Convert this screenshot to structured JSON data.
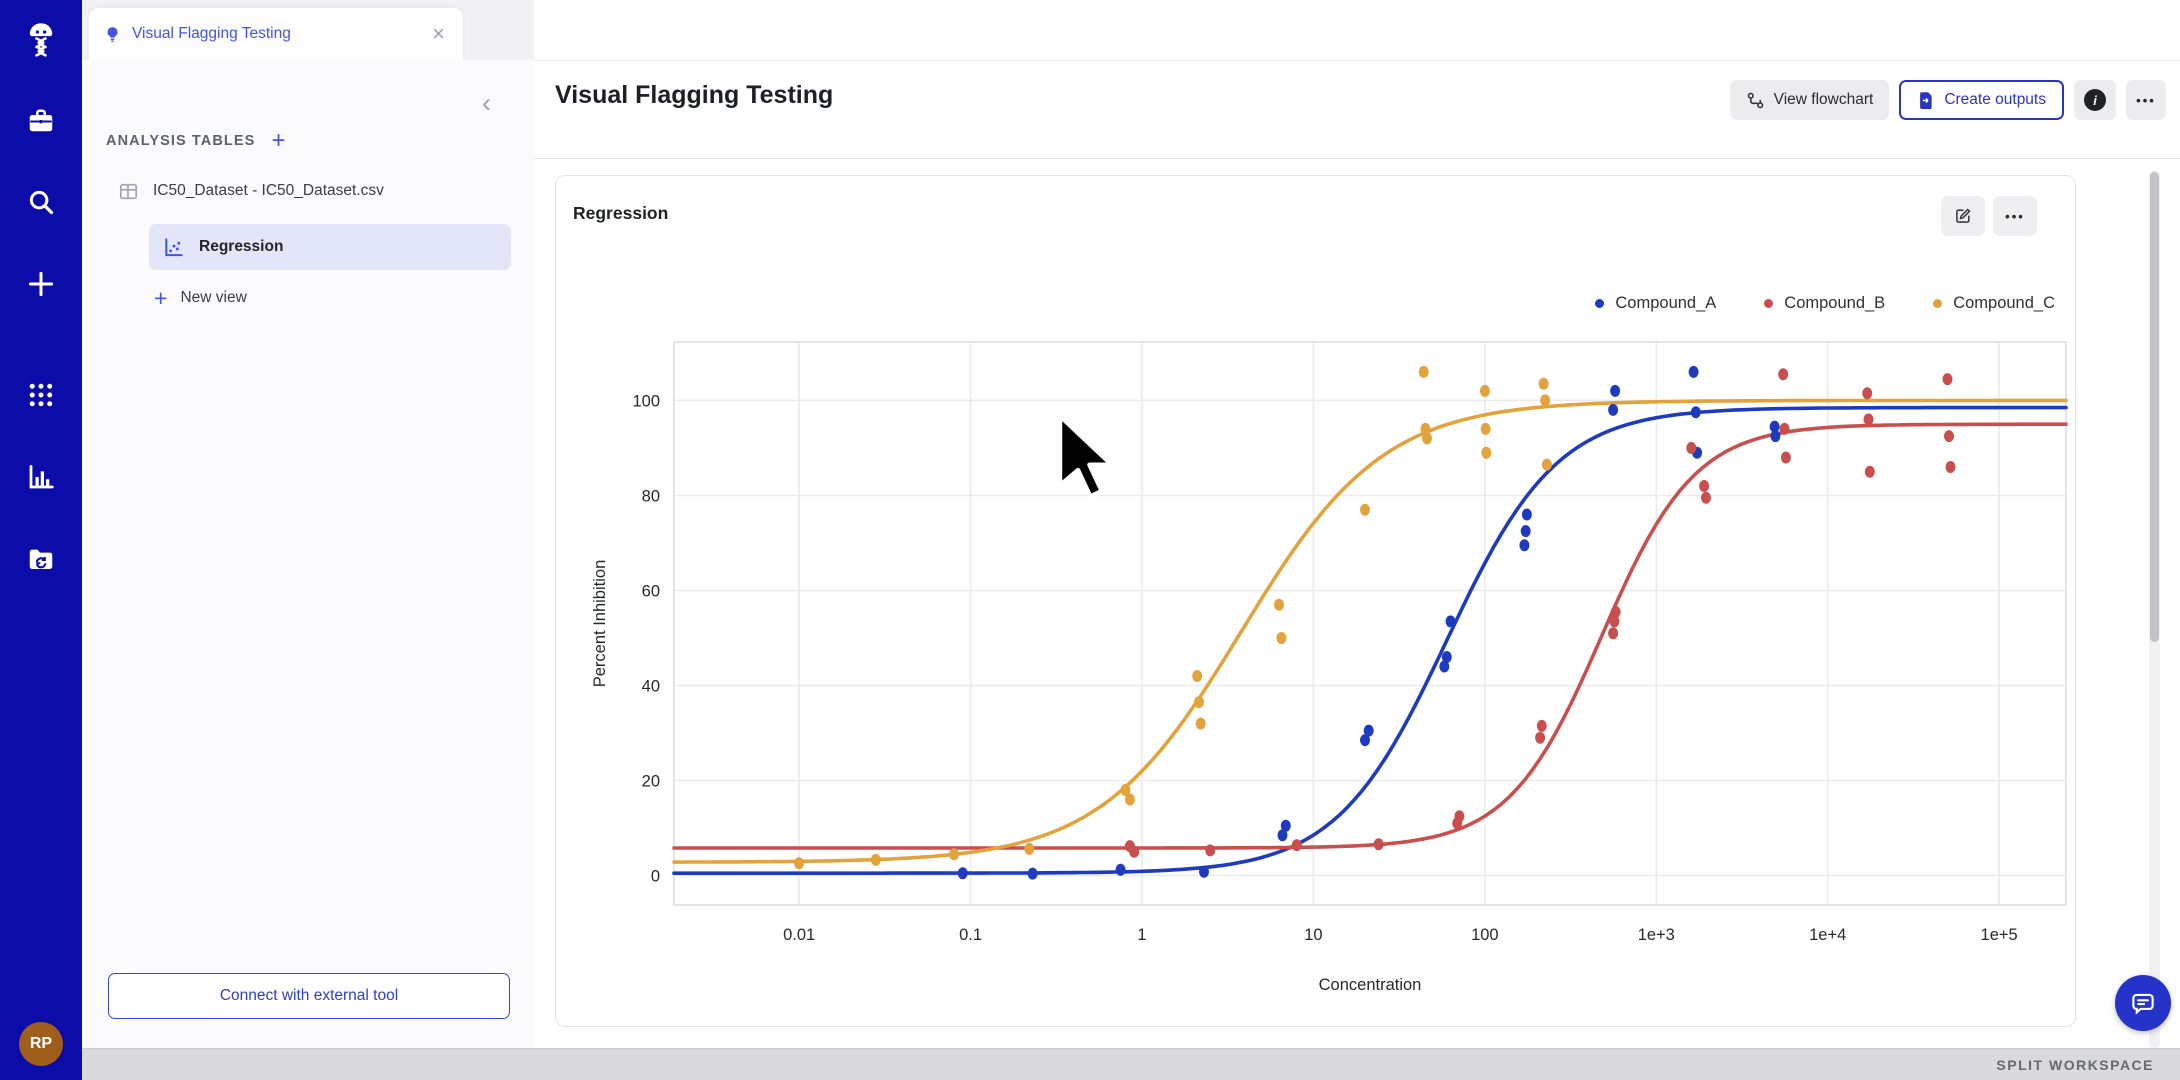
{
  "colors": {
    "sidebar": "#0c0ca8",
    "accent": "#4353e0",
    "button_blue": "#2935bc",
    "selected_row_bg": "#e3e6f8",
    "chart_blue": "#1e3abe",
    "chart_red": "#c94f4f",
    "chart_yellow": "#e3a33c"
  },
  "sidebar": {
    "icons": [
      "scientist-logo",
      "briefcase",
      "search",
      "plus",
      "apps-grid",
      "bar-chart",
      "folder-sync"
    ],
    "avatar_initials": "RP"
  },
  "tab": {
    "title": "Visual Flagging Testing",
    "close": "×",
    "icon": "lightbulb"
  },
  "panel": {
    "collapse": "‹",
    "section_title": "ANALYSIS TABLES",
    "section_add": "+",
    "dataset": "IC50_Dataset - IC50_Dataset.csv",
    "views": [
      {
        "label": "Regression",
        "selected": true
      },
      {
        "label": "New view",
        "selected": false
      }
    ],
    "new_view_plus": "+",
    "connect_button": "Connect with external tool"
  },
  "header": {
    "title": "Visual Flagging Testing",
    "view_flowchart": "View flowchart",
    "create_outputs": "Create outputs",
    "info_label": "i",
    "more_label": "•••"
  },
  "card": {
    "title": "Regression",
    "more_label": "•••"
  },
  "chart_data": {
    "type": "scatter",
    "subtype": "dose-response-4PL-fit",
    "title": "",
    "xlabel": "Concentration",
    "ylabel": "Percent Inhibition",
    "x_scale": "log",
    "grid": true,
    "legend_position": "top-right",
    "x_ticks": [
      {
        "label": "0.01",
        "log": -2
      },
      {
        "label": "0.1",
        "log": -1
      },
      {
        "label": "1",
        "log": 0
      },
      {
        "label": "10",
        "log": 1
      },
      {
        "label": "100",
        "log": 2
      },
      {
        "label": "1e+3",
        "log": 3
      },
      {
        "label": "1e+4",
        "log": 4
      },
      {
        "label": "1e+5",
        "log": 5
      }
    ],
    "y_ticks": [
      0,
      20,
      40,
      60,
      80,
      100
    ],
    "axis": {
      "xlog_min": -2.73,
      "xlog_max": 5.39,
      "y_min": -6.2,
      "y_max": 112.3
    },
    "series": [
      {
        "name": "Compound_A",
        "color": "#1e3abe",
        "fit": {
          "bottom": 0.5,
          "top": 98.5,
          "ec50": 60,
          "hill": 1.35
        },
        "points": [
          [
            0.09,
            0.5
          ],
          [
            0.23,
            0.4
          ],
          [
            0.75,
            1.2
          ],
          [
            2.3,
            0.8
          ],
          [
            6.6,
            8.5
          ],
          [
            6.9,
            10.5
          ],
          [
            20,
            28.5
          ],
          [
            21,
            30.5
          ],
          [
            58,
            44
          ],
          [
            60,
            46
          ],
          [
            63,
            53.5
          ],
          [
            170,
            69.5
          ],
          [
            173,
            72.5
          ],
          [
            176,
            76
          ],
          [
            560,
            98
          ],
          [
            575,
            102
          ],
          [
            1650,
            106
          ],
          [
            1700,
            97.5
          ],
          [
            1730,
            89
          ],
          [
            4900,
            94.5
          ],
          [
            4950,
            92.5
          ]
        ]
      },
      {
        "name": "Compound_B",
        "color": "#c94f4f",
        "fit": {
          "bottom": 5.8,
          "top": 95,
          "ec50": 480,
          "hill": 1.6
        },
        "points": [
          [
            0.85,
            6.2
          ],
          [
            0.9,
            5.0
          ],
          [
            2.5,
            5.3
          ],
          [
            8,
            6.4
          ],
          [
            24,
            6.6
          ],
          [
            69,
            11
          ],
          [
            71,
            12.5
          ],
          [
            210,
            29
          ],
          [
            215,
            31.5
          ],
          [
            560,
            51
          ],
          [
            570,
            53.5
          ],
          [
            580,
            55.5
          ],
          [
            1600,
            90
          ],
          [
            1900,
            82
          ],
          [
            1950,
            79.5
          ],
          [
            5500,
            105.5
          ],
          [
            5600,
            94
          ],
          [
            5700,
            88
          ],
          [
            17000,
            101.5
          ],
          [
            17300,
            96
          ],
          [
            17600,
            85
          ],
          [
            50000,
            104.5
          ],
          [
            51000,
            92.5
          ],
          [
            52000,
            86
          ]
        ]
      },
      {
        "name": "Compound_C",
        "color": "#e3a33c",
        "fit": {
          "bottom": 2.8,
          "top": 100,
          "ec50": 3.8,
          "hill": 1.05
        },
        "points": [
          [
            0.01,
            2.6
          ],
          [
            0.028,
            3.3
          ],
          [
            0.08,
            4.5
          ],
          [
            0.22,
            5.6
          ],
          [
            0.8,
            18
          ],
          [
            0.85,
            16
          ],
          [
            2.1,
            42
          ],
          [
            2.15,
            36.5
          ],
          [
            2.2,
            32
          ],
          [
            6.3,
            57
          ],
          [
            6.5,
            50
          ],
          [
            20,
            77
          ],
          [
            44,
            106
          ],
          [
            45,
            94
          ],
          [
            46,
            92
          ],
          [
            100,
            102
          ],
          [
            101,
            94
          ],
          [
            102,
            89
          ],
          [
            220,
            103.5
          ],
          [
            225,
            100
          ],
          [
            230,
            86.5
          ]
        ]
      }
    ]
  },
  "footer": {
    "split_label": "SPLIT WORKSPACE"
  }
}
